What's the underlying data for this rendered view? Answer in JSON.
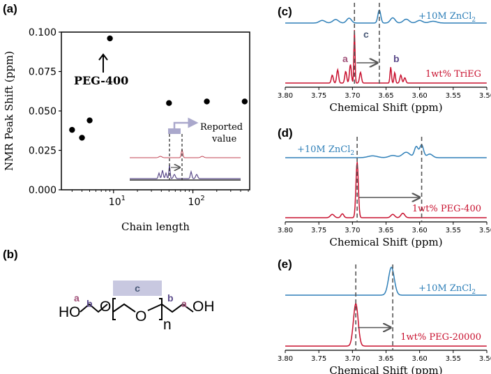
{
  "colors": {
    "blue": "#2e7fb8",
    "red": "#c8102e",
    "grey": "#555555",
    "lavender": "#aaa8cc",
    "mauve": "#a05078",
    "purple": "#5a4a8a",
    "slate": "#4a5a78"
  },
  "panel_a": {
    "label": "(a)",
    "annotation": "PEG-400",
    "inset_note_line1": "Reported",
    "inset_note_line2": "value",
    "chart_data": {
      "type": "scatter",
      "x_scale": "log",
      "xlabel": "Chain length",
      "ylabel": "NMR Peak Shift (ppm)",
      "xlim": [
        2.2,
        520
      ],
      "ylim": [
        0.0,
        0.1
      ],
      "x_ticks": [
        {
          "base": "10",
          "exp": "1"
        },
        {
          "base": "10",
          "exp": "2"
        }
      ],
      "y_ticks": [
        "0.000",
        "0.025",
        "0.050",
        "0.075",
        "0.100"
      ],
      "x": [
        3,
        4,
        5,
        9,
        50,
        150,
        450
      ],
      "y": [
        0.038,
        0.033,
        0.044,
        0.096,
        0.055,
        0.056,
        0.056
      ]
    }
  },
  "panel_b": {
    "label": "(b)",
    "ho": "HO",
    "oh": "OH",
    "o1": "O",
    "o2": "O",
    "n": "n",
    "lbl_a": "a",
    "lbl_b": "b",
    "lbl_c": "c"
  },
  "spectra": [
    {
      "label": "(c)",
      "xlabel": "Chemical Shift (ppm)",
      "x_ticks": [
        "3.80",
        "3.75",
        "3.70",
        "3.65",
        "3.60",
        "3.55",
        "3.50"
      ],
      "blue_label_main": "+10M ZnCl",
      "blue_label_sub": "2",
      "red_label": "1wt% TriEG",
      "peak_labels": {
        "a": "a",
        "b": "b",
        "c": "c"
      },
      "chart_data": {
        "type": "line",
        "xlim": [
          3.8,
          3.5
        ],
        "dashed_positions": [
          3.697,
          3.66
        ],
        "series": [
          {
            "name": "+10M ZnCl2",
            "peaks": [
              [
                3.745,
                0.15,
                0.006
              ],
              [
                3.725,
                0.2,
                0.006
              ],
              [
                3.705,
                0.28,
                0.005
              ],
              [
                3.66,
                0.75,
                0.003
              ],
              [
                3.64,
                0.3,
                0.005
              ],
              [
                3.62,
                0.22,
                0.006
              ],
              [
                3.6,
                0.15,
                0.006
              ],
              [
                3.58,
                0.1,
                0.008
              ]
            ]
          },
          {
            "name": "1wt% TriEG",
            "peaks": [
              [
                3.73,
                0.15,
                0.002
              ],
              [
                3.722,
                0.25,
                0.002
              ],
              [
                3.71,
                0.22,
                0.002
              ],
              [
                3.703,
                0.35,
                0.002
              ],
              [
                3.697,
                1.0,
                0.0012
              ],
              [
                3.688,
                0.2,
                0.002
              ],
              [
                3.643,
                0.3,
                0.0015
              ],
              [
                3.637,
                0.2,
                0.0015
              ],
              [
                3.628,
                0.15,
                0.002
              ],
              [
                3.622,
                0.1,
                0.002
              ]
            ]
          }
        ]
      }
    },
    {
      "label": "(d)",
      "xlabel": "Chemical Shift (ppm)",
      "x_ticks": [
        "3.80",
        "3.75",
        "3.70",
        "3.65",
        "3.60",
        "3.55",
        "3.50"
      ],
      "blue_label_main": "+10M ZnCl",
      "blue_label_sub": "2",
      "red_label": "1wt% PEG-400",
      "chart_data": {
        "type": "line",
        "xlim": [
          3.8,
          3.5
        ],
        "dashed_positions": [
          3.693,
          3.597
        ],
        "series": [
          {
            "name": "+10M ZnCl2",
            "peaks": [
              [
                3.67,
                0.1,
                0.01
              ],
              [
                3.64,
                0.12,
                0.008
              ],
              [
                3.62,
                0.3,
                0.008
              ],
              [
                3.605,
                0.6,
                0.004
              ],
              [
                3.597,
                0.7,
                0.004
              ],
              [
                3.585,
                0.2,
                0.006
              ]
            ]
          },
          {
            "name": "1wt% PEG-400",
            "peaks": [
              [
                3.693,
                1.0,
                0.0025
              ],
              [
                3.73,
                0.06,
                0.004
              ],
              [
                3.715,
                0.07,
                0.003
              ],
              [
                3.64,
                0.06,
                0.004
              ],
              [
                3.625,
                0.08,
                0.004
              ]
            ]
          }
        ]
      }
    },
    {
      "label": "(e)",
      "xlabel": "Chemical Shift (ppm)",
      "x_ticks": [
        "3.80",
        "3.75",
        "3.70",
        "3.65",
        "3.60",
        "3.55",
        "3.50"
      ],
      "blue_label_main": "+10M ZnCl",
      "blue_label_sub": "2",
      "red_label": "1wt% PEG-20000",
      "chart_data": {
        "type": "line",
        "xlim": [
          3.8,
          3.5
        ],
        "dashed_positions": [
          3.695,
          3.64
        ],
        "series": [
          {
            "name": "+10M ZnCl2",
            "peaks": [
              [
                3.642,
                1.0,
                0.006
              ]
            ]
          },
          {
            "name": "1wt% PEG-20000",
            "peaks": [
              [
                3.695,
                0.95,
                0.005
              ]
            ]
          }
        ]
      }
    }
  ]
}
